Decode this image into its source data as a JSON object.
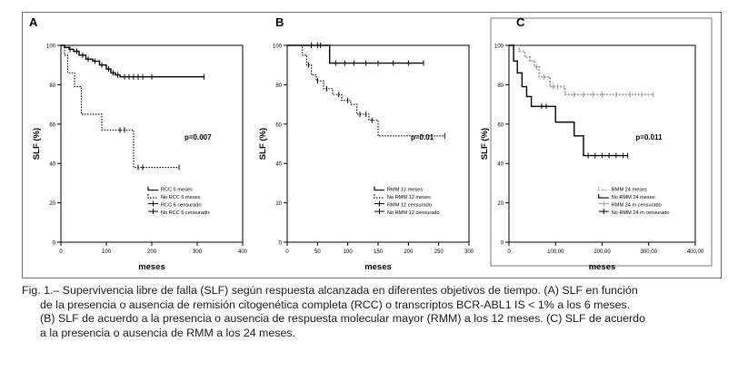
{
  "figure": {
    "caption_lines": [
      "Fig. 1.– Supervivencia libre de falla (SLF) según respuesta alcanzada en diferentes objetivos de tiempo. (A) SLF en función",
      "de la presencia o ausencia de remisión citogenética completa (RCC) o  transcriptos BCR-ABL1 IS < 1% a los 6 meses.",
      "(B) SLF de acuerdo a la presencia o ausencia de respuesta molecular mayor (RMM) a los 12 meses. (C) SLF de acuerdo",
      "a la presencia o ausencia de RMM a los 24 meses."
    ]
  },
  "chart_data": [
    {
      "panel_label": "A",
      "type": "line",
      "subtype": "kaplan-meier",
      "ylabel": "SLF (%)",
      "xlabel": "meses",
      "xlim": [
        0,
        400
      ],
      "ylim": [
        0,
        100
      ],
      "x_ticks": [
        "0",
        "100",
        "200",
        "300",
        "400"
      ],
      "y_ticks": [
        "0",
        "20",
        "40",
        "60",
        "80",
        "100"
      ],
      "p_value": "p=0.007",
      "legend_position": "bottom-right",
      "legend": [
        "RCC 6 meses",
        "No RCC 6 meses",
        "RCC 6 censurado",
        "No RCC 6 censurado"
      ],
      "series": [
        {
          "name": "RCC 6 meses",
          "style": "solid",
          "x": [
            0,
            8,
            18,
            28,
            40,
            55,
            70,
            85,
            100,
            110,
            120,
            130,
            315
          ],
          "y": [
            100,
            99,
            98,
            97,
            95,
            93,
            92,
            90,
            88,
            86,
            85,
            84,
            84
          ],
          "censored_x": [
            20,
            35,
            48,
            60,
            75,
            90,
            105,
            115,
            125,
            140,
            150,
            160,
            170,
            180,
            200,
            315
          ]
        },
        {
          "name": "No RCC 6 meses",
          "style": "dotted",
          "x": [
            0,
            8,
            15,
            30,
            45,
            90,
            160,
            260
          ],
          "y": [
            100,
            95,
            86,
            79,
            65,
            57,
            38,
            38
          ],
          "censored_x": [
            130,
            140,
            170,
            180,
            260
          ]
        }
      ]
    },
    {
      "panel_label": "B",
      "type": "line",
      "subtype": "kaplan-meier",
      "ylabel": "SLF (%)",
      "xlabel": "meses",
      "xlim": [
        0,
        300
      ],
      "ylim": [
        0,
        100
      ],
      "x_ticks": [
        "0",
        "50",
        "100",
        "150",
        "200",
        "250",
        "300"
      ],
      "y_ticks": [
        "0",
        "20",
        "40",
        "60",
        "80",
        "100"
      ],
      "p_value": "p=0.01",
      "legend_position": "bottom-right",
      "legend": [
        "RMM 12 meses",
        "No RMM 12 meses",
        "RMM 12 censurado",
        "No RMM 12 censurado"
      ],
      "series": [
        {
          "name": "RMM 12 meses",
          "style": "solid",
          "x": [
            0,
            60,
            70,
            225
          ],
          "y": [
            100,
            100,
            91,
            91
          ],
          "censored_x": [
            40,
            50,
            55,
            80,
            95,
            110,
            130,
            150,
            175,
            200,
            225
          ]
        },
        {
          "name": "No RMM 12 meses",
          "style": "dotted",
          "x": [
            0,
            25,
            32,
            40,
            48,
            60,
            75,
            90,
            105,
            115,
            135,
            150,
            170,
            260
          ],
          "y": [
            100,
            95,
            90,
            85,
            82,
            78,
            75,
            72,
            70,
            65,
            62,
            54,
            54,
            54
          ],
          "censored_x": [
            35,
            50,
            65,
            85,
            100,
            120,
            130,
            140,
            260
          ]
        }
      ]
    },
    {
      "panel_label": "C",
      "type": "line",
      "subtype": "kaplan-meier",
      "ylabel": "SLF (%)",
      "xlabel": "meses",
      "xlim": [
        0,
        400
      ],
      "ylim": [
        0,
        100
      ],
      "x_ticks": [
        "0",
        "100,00",
        "200,00",
        "300,00",
        "400,00"
      ],
      "y_ticks": [
        "0",
        "20",
        "40",
        "60",
        "80",
        "100"
      ],
      "p_value": "p=0.011",
      "legend_position": "bottom-right",
      "legend": [
        "RMM 24 meses",
        "No RMM 24 meses",
        "RMM 24 m censurado",
        "No RMM 24 m censurado"
      ],
      "series": [
        {
          "name": "RMM 24 meses",
          "style": "gray-dotted",
          "x": [
            0,
            10,
            22,
            34,
            45,
            55,
            65,
            88,
            100,
            120,
            310
          ],
          "y": [
            100,
            100,
            97,
            94,
            92,
            89,
            84,
            79,
            79,
            75,
            75
          ],
          "censored_x": [
            60,
            75,
            95,
            105,
            140,
            160,
            180,
            200,
            230,
            260,
            285,
            310
          ]
        },
        {
          "name": "No RMM 24 meses",
          "style": "solid",
          "x": [
            0,
            10,
            18,
            28,
            38,
            48,
            60,
            100,
            140,
            160,
            255
          ],
          "y": [
            100,
            92,
            86,
            79,
            74,
            69,
            69,
            61,
            54,
            44,
            44
          ],
          "censored_x": [
            70,
            80,
            170,
            185,
            200,
            215,
            230,
            245,
            255
          ]
        }
      ]
    }
  ]
}
